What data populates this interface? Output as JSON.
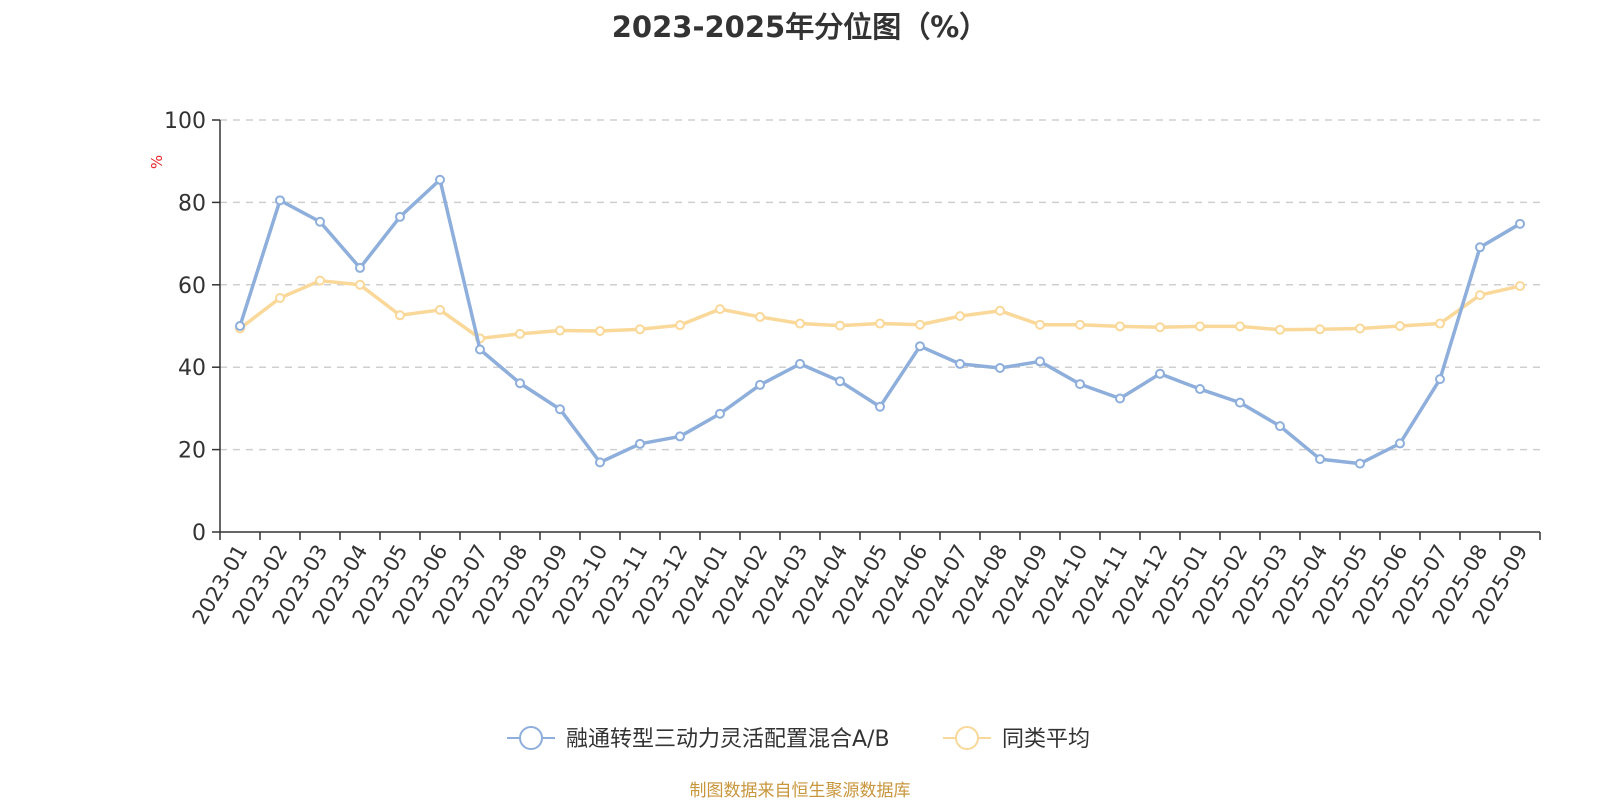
{
  "chart_data": {
    "type": "line",
    "title": "2023-2025年分位图（%）",
    "ylabel": "%",
    "xlabel": "",
    "ylim": [
      0,
      100
    ],
    "yticks": [
      0,
      20,
      40,
      60,
      80,
      100
    ],
    "grid": true,
    "legend_position": "bottom",
    "categories": [
      "2023-01",
      "2023-02",
      "2023-03",
      "2023-04",
      "2023-05",
      "2023-06",
      "2023-07",
      "2023-08",
      "2023-09",
      "2023-10",
      "2023-11",
      "2023-12",
      "2024-01",
      "2024-02",
      "2024-03",
      "2024-04",
      "2024-05",
      "2024-06",
      "2024-07",
      "2024-08",
      "2024-09",
      "2024-10",
      "2024-11",
      "2024-12",
      "2025-01",
      "2025-02",
      "2025-03",
      "2025-04",
      "2025-05",
      "2025-06",
      "2025-07",
      "2025-08",
      "2025-09"
    ],
    "series": [
      {
        "name": "融通转型三动力灵活配置混合A/B",
        "color": "#8eaedb",
        "values": [
          50,
          80.5,
          75.3,
          64.1,
          76.5,
          85.5,
          44.3,
          36.1,
          29.8,
          16.9,
          21.4,
          23.2,
          28.7,
          35.7,
          40.8,
          36.6,
          30.4,
          45.1,
          40.8,
          39.8,
          41.4,
          35.9,
          32.4,
          38.4,
          34.7,
          31.4,
          25.7,
          17.7,
          16.6,
          21.5,
          37.1,
          69.1,
          74.8
        ]
      },
      {
        "name": "同类平均",
        "color": "#f9d899",
        "values": [
          49.4,
          56.8,
          61,
          60,
          52.6,
          53.9,
          47,
          48.1,
          48.9,
          48.8,
          49.2,
          50.2,
          54.1,
          52.2,
          50.6,
          50.1,
          50.6,
          50.3,
          52.4,
          53.7,
          50.3,
          50.3,
          49.9,
          49.7,
          49.9,
          49.9,
          49.1,
          49.2,
          49.4,
          50,
          50.6,
          57.5,
          59.7
        ]
      }
    ]
  },
  "source": "制图数据来自恒生聚源数据库"
}
